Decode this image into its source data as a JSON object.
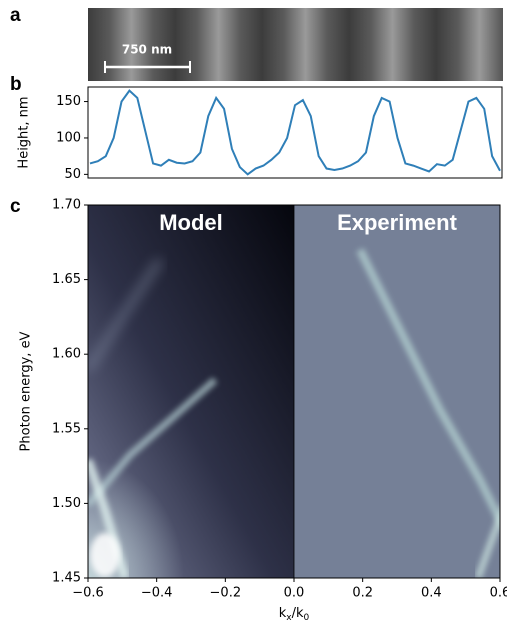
{
  "panels": {
    "a": {
      "label": "a",
      "scale_bar": "750 nm"
    },
    "b": {
      "label": "b"
    },
    "c": {
      "label": "c"
    }
  },
  "chart_data": [
    {
      "type": "line",
      "ylabel": "Height, nm",
      "color": "#2f7fb8",
      "values": [
        65,
        68,
        75,
        100,
        150,
        165,
        155,
        110,
        65,
        62,
        70,
        66,
        65,
        68,
        80,
        130,
        155,
        140,
        85,
        60,
        50,
        58,
        62,
        70,
        80,
        100,
        145,
        152,
        130,
        75,
        58,
        56,
        58,
        62,
        68,
        80,
        130,
        155,
        150,
        100,
        65,
        62,
        58,
        54,
        64,
        62,
        70,
        110,
        150,
        155,
        140,
        75,
        55
      ],
      "ylim": [
        45,
        170
      ],
      "yticks": [
        50,
        100,
        150
      ]
    },
    {
      "type": "heatmap",
      "panel_titles": [
        "Model",
        "Experiment"
      ],
      "xlabel": [
        "k",
        "x",
        "/k",
        "0"
      ],
      "ylabel": "Photon energy, eV",
      "xlim": [
        -0.6,
        0.6
      ],
      "ylim": [
        1.45,
        1.7
      ],
      "xticks": [
        {
          "value": -0.6,
          "label": "−0.6"
        },
        {
          "value": -0.4,
          "label": "−0.4"
        },
        {
          "value": -0.2,
          "label": "−0.2"
        },
        {
          "value": 0,
          "label": "0.0"
        },
        0.2,
        0.4,
        0.6
      ],
      "yticks": [
        1.45,
        {
          "value": 1.5,
          "label": "1.50"
        },
        1.55,
        {
          "value": 1.6,
          "label": "1.60"
        },
        1.65,
        {
          "value": 1.7,
          "label": "1.70"
        }
      ]
    }
  ]
}
